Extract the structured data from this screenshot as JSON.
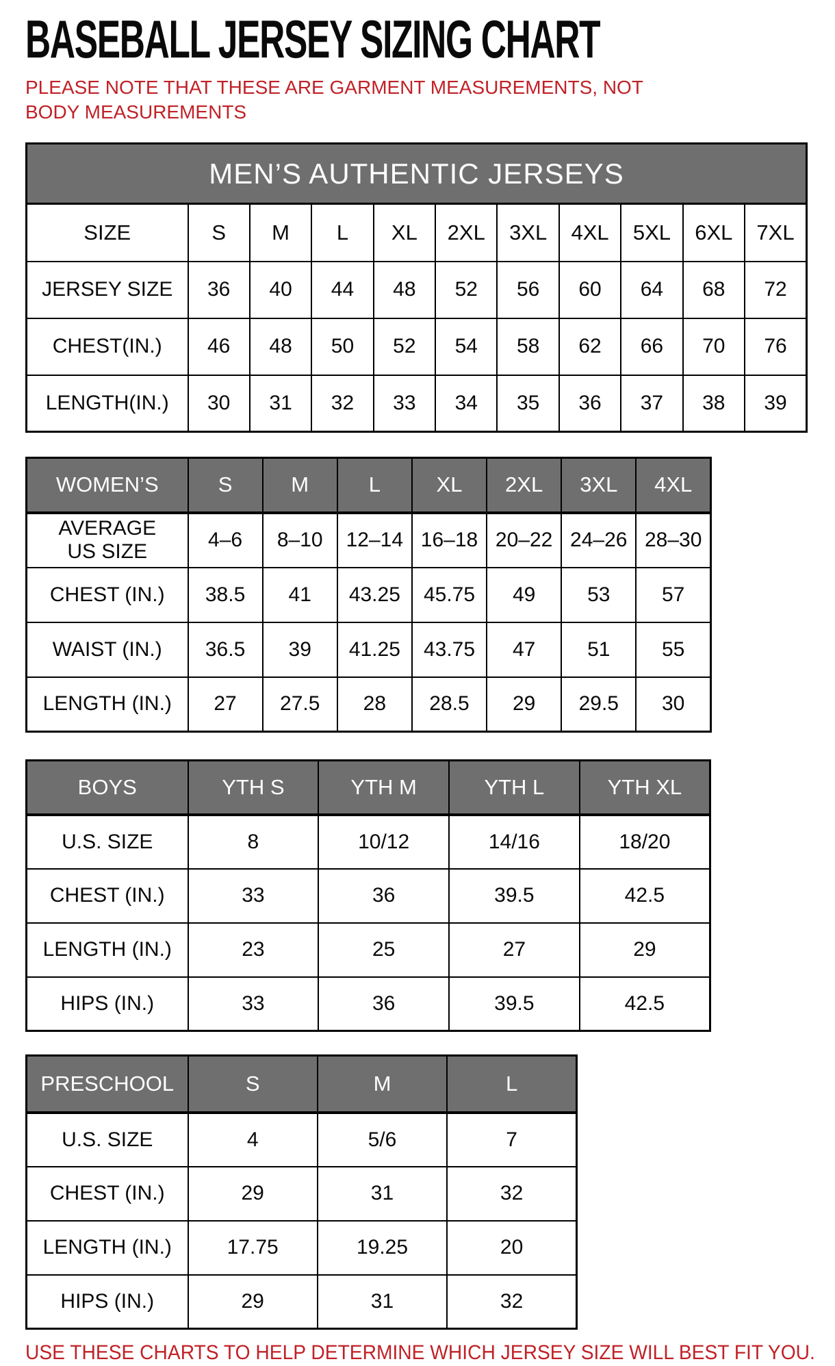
{
  "page": {
    "title": "BASEBALL JERSEY SIZING CHART",
    "note": "PLEASE NOTE THAT THESE ARE GARMENT MEASUREMENTS, NOT BODY MEASUREMENTS",
    "footer": "USE THESE CHARTS TO HELP DETERMINE WHICH JERSEY SIZE WILL BEST FIT YOU.",
    "colors": {
      "accent_red": "#c02127",
      "header_gray": "#6f6f6f",
      "header_text": "#ffffff",
      "grid_black": "#000000"
    }
  },
  "tables": [
    {
      "name": "mens-authentic-jerseys",
      "banner": "MEN’S AUTHENTIC JERSEYS",
      "corner_label": "SIZE",
      "gray_header": false,
      "columns": [
        "S",
        "M",
        "L",
        "XL",
        "2XL",
        "3XL",
        "4XL",
        "5XL",
        "6XL",
        "7XL"
      ],
      "rows": [
        {
          "label": "JERSEY SIZE",
          "values": [
            "36",
            "40",
            "44",
            "48",
            "52",
            "56",
            "60",
            "64",
            "68",
            "72"
          ]
        },
        {
          "label": "CHEST(IN.)",
          "values": [
            "46",
            "48",
            "50",
            "52",
            "54",
            "58",
            "62",
            "66",
            "70",
            "76"
          ]
        },
        {
          "label": "LENGTH(IN.)",
          "values": [
            "30",
            "31",
            "32",
            "33",
            "34",
            "35",
            "36",
            "37",
            "38",
            "39"
          ]
        }
      ]
    },
    {
      "name": "womens",
      "banner": null,
      "corner_label": "WOMEN’S",
      "gray_header": true,
      "columns": [
        "S",
        "M",
        "L",
        "XL",
        "2XL",
        "3XL",
        "4XL"
      ],
      "rows": [
        {
          "label": "AVERAGE\nUS SIZE",
          "values": [
            "4–6",
            "8–10",
            "12–14",
            "16–18",
            "20–22",
            "24–26",
            "28–30"
          ]
        },
        {
          "label": "CHEST (IN.)",
          "values": [
            "38.5",
            "41",
            "43.25",
            "45.75",
            "49",
            "53",
            "57"
          ]
        },
        {
          "label": "WAIST (IN.)",
          "values": [
            "36.5",
            "39",
            "41.25",
            "43.75",
            "47",
            "51",
            "55"
          ]
        },
        {
          "label": "LENGTH (IN.)",
          "values": [
            "27",
            "27.5",
            "28",
            "28.5",
            "29",
            "29.5",
            "30"
          ]
        }
      ]
    },
    {
      "name": "boys",
      "banner": null,
      "corner_label": "BOYS",
      "gray_header": true,
      "columns": [
        "YTH S",
        "YTH M",
        "YTH L",
        "YTH XL"
      ],
      "rows": [
        {
          "label": "U.S. SIZE",
          "values": [
            "8",
            "10/12",
            "14/16",
            "18/20"
          ]
        },
        {
          "label": "CHEST (IN.)",
          "values": [
            "33",
            "36",
            "39.5",
            "42.5"
          ]
        },
        {
          "label": "LENGTH (IN.)",
          "values": [
            "23",
            "25",
            "27",
            "29"
          ]
        },
        {
          "label": "HIPS (IN.)",
          "values": [
            "33",
            "36",
            "39.5",
            "42.5"
          ]
        }
      ]
    },
    {
      "name": "preschool",
      "banner": null,
      "corner_label": "PRESCHOOL",
      "gray_header": true,
      "columns": [
        "S",
        "M",
        "L"
      ],
      "rows": [
        {
          "label": "U.S. SIZE",
          "values": [
            "4",
            "5/6",
            "7"
          ]
        },
        {
          "label": "CHEST (IN.)",
          "values": [
            "29",
            "31",
            "32"
          ]
        },
        {
          "label": "LENGTH (IN.)",
          "values": [
            "17.75",
            "19.25",
            "20"
          ]
        },
        {
          "label": "HIPS (IN.)",
          "values": [
            "29",
            "31",
            "32"
          ]
        }
      ]
    }
  ]
}
